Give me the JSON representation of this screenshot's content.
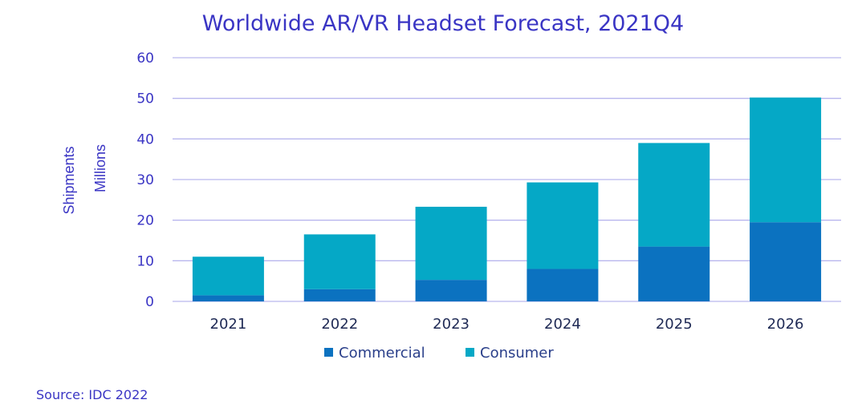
{
  "chart_data": {
    "type": "bar",
    "stacked": true,
    "title": "Worldwide AR/VR Headset Forecast, 2021Q4",
    "ylabel": "Shipments",
    "ylabel_unit": "Millions",
    "xlabel": "",
    "ylim": [
      0,
      60
    ],
    "yticks": [
      0,
      10,
      20,
      30,
      40,
      50,
      60
    ],
    "grid": true,
    "legend_position": "bottom",
    "categories": [
      "2021",
      "2022",
      "2023",
      "2024",
      "2025",
      "2026"
    ],
    "series": [
      {
        "name": "Commercial",
        "color": "#0b72c0",
        "values": [
          1.5,
          3,
          5.3,
          8,
          13.5,
          19.5
        ]
      },
      {
        "name": "Consumer",
        "color": "#05a8c6",
        "values": [
          9.5,
          13.5,
          18,
          21.3,
          25.5,
          30.7
        ]
      }
    ],
    "source": "Source: IDC 2022"
  },
  "colors": {
    "title": "#3a35c4",
    "grid": "#b9b6ee"
  }
}
